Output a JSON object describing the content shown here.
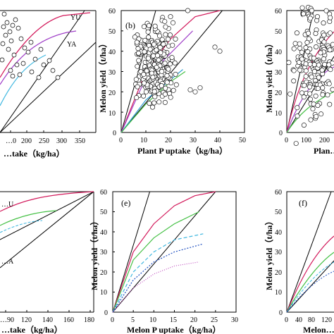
{
  "chart_data": [
    {
      "panel": "a",
      "type": "scatter",
      "xlabel": "…take（kg/ha）",
      "x_ticks": [
        "…0",
        "200",
        "250",
        "300",
        "350"
      ],
      "curve_labels": [
        "YU",
        "YA"
      ],
      "colors": {
        "upper": "#d2185a",
        "middle": "#a040c8",
        "lower": "#40b8e0"
      }
    },
    {
      "panel": "b",
      "type": "scatter",
      "xlabel": "Plant P uptake（kg/ha）",
      "ylabel": "Melon yield（t/ha）",
      "xlim": [
        0,
        50
      ],
      "ylim": [
        0,
        60
      ],
      "x_ticks": [
        "0",
        "10",
        "20",
        "30",
        "40",
        "50"
      ],
      "y_ticks": [
        "0",
        "10",
        "20",
        "30",
        "40",
        "50",
        "60"
      ],
      "boundary_lines": [
        {
          "name": "upper",
          "points": [
            [
              0,
              0
            ],
            [
              14,
              60
            ]
          ]
        },
        {
          "name": "lower",
          "points": [
            [
              0,
              0
            ],
            [
              41,
              60
            ]
          ]
        }
      ],
      "curves": [
        {
          "color": "#d2185a",
          "points": [
            [
              0,
              0
            ],
            [
              10,
              30
            ],
            [
              20,
              46
            ],
            [
              30,
              57
            ],
            [
              40,
              60
            ]
          ]
        },
        {
          "color": "#a040c8",
          "points": [
            [
              0,
              0
            ],
            [
              10,
              27
            ],
            [
              20,
              39
            ],
            [
              29,
              50
            ]
          ]
        },
        {
          "color": "#2a9fd0",
          "points": [
            [
              0,
              0
            ],
            [
              10,
              16
            ],
            [
              20,
              26
            ],
            [
              25,
              31
            ]
          ]
        },
        {
          "color": "#44c044",
          "points": [
            [
              0,
              0
            ],
            [
              10,
              14
            ],
            [
              20,
              25
            ],
            [
              26,
              30
            ]
          ]
        }
      ]
    },
    {
      "panel": "c",
      "type": "scatter",
      "ylabel": "Melon yield（t/ha）",
      "ylim": [
        0,
        60
      ],
      "x_ticks": [
        "0",
        "100",
        "200"
      ],
      "y_ticks": [
        "0",
        "10",
        "20",
        "30",
        "40",
        "50",
        "60"
      ],
      "xlabel_partial": "Plan…"
    },
    {
      "panel": "d",
      "type": "line",
      "xlabel": "…take（kg/ha）",
      "x_ticks": [
        "…90",
        "120",
        "140",
        "160",
        "180"
      ],
      "curve_labels": [
        "…U",
        "…A"
      ],
      "colors": {
        "upper": "#d2185a",
        "middle": "#44c044",
        "lower": "#40b8e0"
      }
    },
    {
      "panel": "e",
      "type": "line",
      "xlabel": "Melon P uptake（kg/ha）",
      "ylabel": "Melon yield（t/ha）",
      "xlim": [
        0,
        30
      ],
      "ylim": [
        0,
        60
      ],
      "x_ticks": [
        "0",
        "5",
        "10",
        "15",
        "20",
        "25",
        "30"
      ],
      "y_ticks": [
        "0",
        "10",
        "20",
        "30",
        "40",
        "50",
        "60"
      ],
      "curves": [
        {
          "color": "#d2185a",
          "points": [
            [
              0,
              0
            ],
            [
              5,
              30
            ],
            [
              10,
              44
            ],
            [
              15,
              53
            ],
            [
              20,
              58
            ],
            [
              25,
              60
            ]
          ]
        },
        {
          "color": "#44c044",
          "points": [
            [
              0,
              0
            ],
            [
              5,
              26
            ],
            [
              10,
              37
            ],
            [
              15,
              44
            ],
            [
              21,
              50
            ]
          ]
        },
        {
          "color": "#40b8e0",
          "points": [
            [
              0,
              0
            ],
            [
              5,
              20
            ],
            [
              10,
              30
            ],
            [
              15,
              36
            ],
            [
              22,
              39
            ]
          ]
        },
        {
          "color": "#2050c0",
          "points": [
            [
              0,
              0
            ],
            [
              5,
              16
            ],
            [
              10,
              25
            ],
            [
              15,
              30
            ],
            [
              22,
              34
            ]
          ]
        },
        {
          "color": "#c050c0",
          "points": [
            [
              0,
              0
            ],
            [
              5,
              12
            ],
            [
              10,
              19
            ],
            [
              15,
              23
            ],
            [
              21,
              25
            ]
          ]
        }
      ]
    },
    {
      "panel": "f",
      "type": "line",
      "xlabel_partial": "Melon…",
      "ylabel": "Melon yield（t/ha）",
      "ylim": [
        0,
        60
      ],
      "x_ticks": [
        "0",
        "40",
        "80",
        "120"
      ],
      "y_ticks": [
        "0",
        "10",
        "20",
        "30",
        "40",
        "50",
        "60"
      ]
    }
  ]
}
